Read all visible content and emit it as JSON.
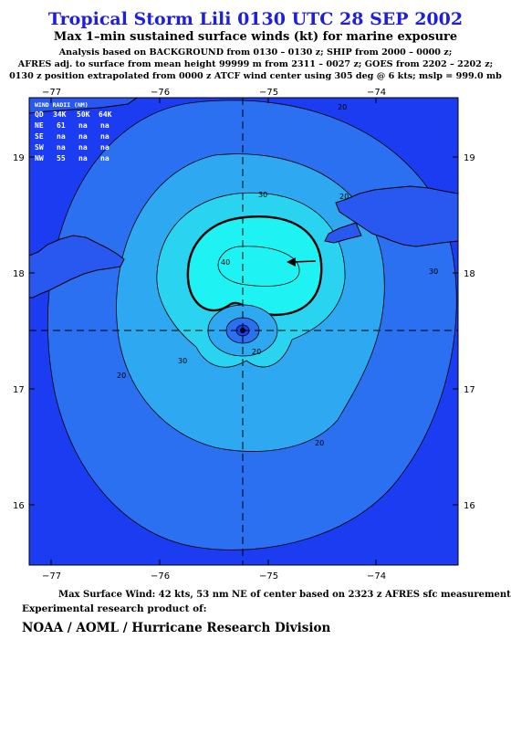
{
  "header": {
    "title": "Tropical Storm Lili 0130 UTC 28 SEP 2002",
    "subtitle": "Max 1–min sustained surface winds (kt) for marine exposure",
    "analysis_line1": "Analysis based on  BACKGROUND from 0130 – 0130 z;  SHIP from 2000 – 0000 z;",
    "analysis_line2": "AFRES adj. to surface from mean height 99999 m from 2311 – 0027 z;  GOES from 2202 – 2202 z;",
    "analysis_line3": "0130 z position extrapolated from 0000 z ATCF wind center using 305 deg @ 6 kts; mslp = 999.0 mb"
  },
  "map": {
    "lon_ticks": [
      "−77",
      "−76",
      "−75",
      "−74"
    ],
    "lat_ticks": [
      "19",
      "18",
      "17",
      "16"
    ],
    "lon_range": [
      -77.6,
      -73.6
    ],
    "lat_range": [
      15.5,
      19.5
    ],
    "storm_center": {
      "lon": -75.2,
      "lat": 17.5
    },
    "max_wind_location": {
      "lon": -74.8,
      "lat": 18.1
    },
    "contour_labels": [
      "20",
      "30",
      "40",
      "20",
      "30",
      "20",
      "20",
      "30",
      "20"
    ],
    "wind_radii": {
      "header": [
        "QD",
        "34K",
        "50K",
        "64K"
      ],
      "title": "WIND RADII (NM)",
      "rows": [
        [
          "NE",
          "61",
          "na",
          "na"
        ],
        [
          "SE",
          "na",
          "na",
          "na"
        ],
        [
          "SW",
          "na",
          "na",
          "na"
        ],
        [
          "NW",
          "55",
          "na",
          "na"
        ]
      ]
    },
    "colors": {
      "band_lt10": "#1c3cf2",
      "band_10_20": "#2a70f0",
      "band_20_30": "#2ea8f0",
      "band_30_40": "#2ad4f0",
      "band_gt40": "#1ef2f2",
      "land": "#2858f0"
    }
  },
  "footer": {
    "max_wind": "Max Surface Wind: 42 kts, 53 nm NE of center based on 2323 z AFRES sfc measurement",
    "experimental": "Experimental research product of:",
    "org": "NOAA / AOML / Hurricane Research Division"
  }
}
